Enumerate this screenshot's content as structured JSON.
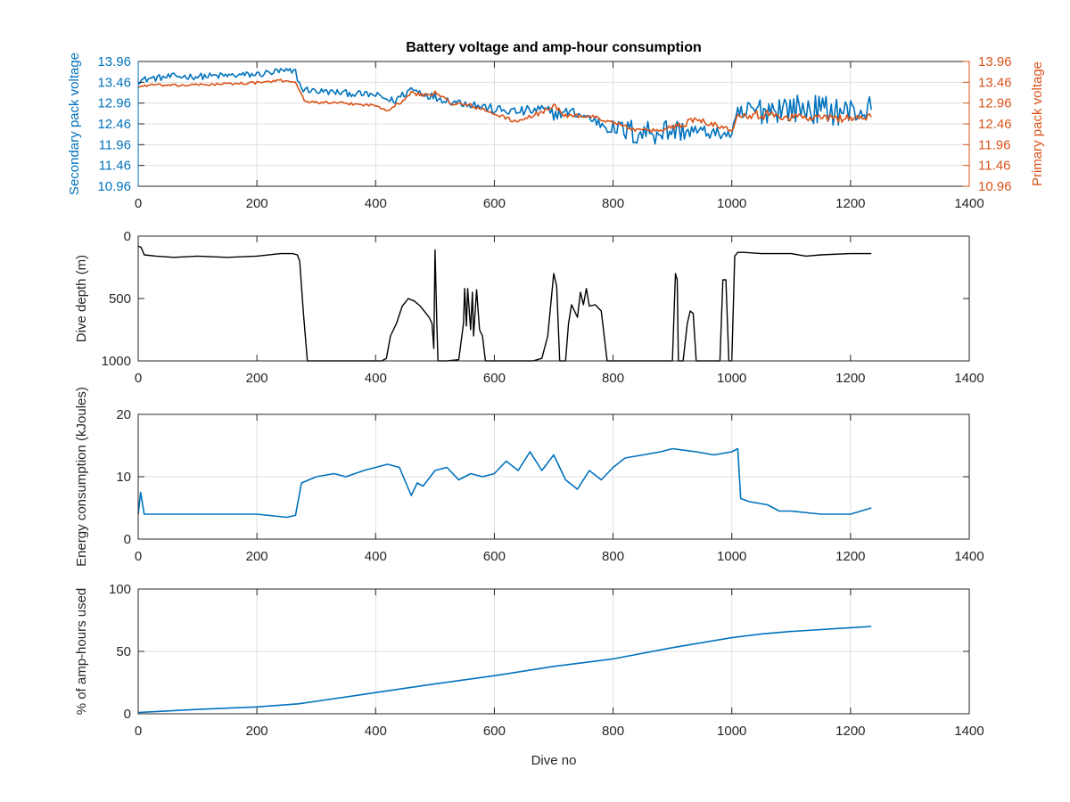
{
  "colors": {
    "secondary": "#0072BD",
    "primary": "#D95319",
    "depth": "#000000",
    "energy": "#0072BD",
    "amphours": "#0072BD",
    "axis": "#262626",
    "grid": "#dfdfdf"
  },
  "chart_data": [
    {
      "type": "line",
      "title": "Battery voltage and amp-hour consumption",
      "xlabel": "",
      "ylabel": "Secondary pack voltage",
      "ylabel_right": "Primary pack voltage",
      "xlim": [
        0,
        1400
      ],
      "ylim": [
        10.96,
        13.96
      ],
      "ylim_right": [
        10.96,
        13.96
      ],
      "xticks": [
        "0",
        "200",
        "400",
        "600",
        "800",
        "1000",
        "1200",
        "1400"
      ],
      "yticks": [
        "10.96",
        "11.46",
        "11.96",
        "12.46",
        "12.96",
        "13.46",
        "13.96"
      ],
      "yticks_right": [
        "10.96",
        "11.46",
        "11.96",
        "12.46",
        "12.96",
        "13.46",
        "13.96"
      ],
      "grid": true,
      "series": [
        {
          "axis": "left",
          "color": "#0072BD",
          "x": [
            0,
            20,
            60,
            100,
            150,
            200,
            240,
            265,
            275,
            300,
            350,
            400,
            430,
            460,
            480,
            500,
            530,
            560,
            600,
            640,
            680,
            700,
            730,
            760,
            800,
            840,
            880,
            920,
            960,
            1000,
            1010,
            1030,
            1080,
            1150,
            1200,
            1235
          ],
          "y": [
            13.5,
            13.55,
            13.6,
            13.6,
            13.62,
            13.65,
            13.72,
            13.7,
            13.3,
            13.25,
            13.2,
            13.15,
            13.0,
            13.3,
            13.2,
            13.1,
            13.0,
            12.95,
            12.8,
            12.75,
            12.8,
            12.7,
            12.75,
            12.6,
            12.35,
            12.25,
            12.3,
            12.3,
            12.25,
            12.2,
            12.6,
            12.75,
            12.85,
            12.8,
            12.75,
            12.8
          ],
          "noise": [
            0.08,
            0.08,
            0.08,
            0.08,
            0.08,
            0.08,
            0.1,
            0.1,
            0.08,
            0.08,
            0.08,
            0.08,
            0.1,
            0.1,
            0.1,
            0.1,
            0.1,
            0.12,
            0.12,
            0.12,
            0.15,
            0.15,
            0.12,
            0.12,
            0.2,
            0.35,
            0.35,
            0.25,
            0.15,
            0.12,
            0.3,
            0.35,
            0.35,
            0.35,
            0.35,
            0.35
          ]
        },
        {
          "axis": "right",
          "color": "#D95319",
          "x": [
            0,
            20,
            60,
            100,
            150,
            200,
            240,
            265,
            280,
            300,
            350,
            400,
            420,
            440,
            460,
            480,
            500,
            530,
            560,
            600,
            640,
            680,
            700,
            720,
            760,
            800,
            840,
            880,
            900,
            920,
            940,
            960,
            980,
            1000,
            1010,
            1030,
            1080,
            1150,
            1200,
            1235
          ],
          "y": [
            13.35,
            13.4,
            13.38,
            13.4,
            13.42,
            13.45,
            13.5,
            13.48,
            13.0,
            12.98,
            12.95,
            12.9,
            12.8,
            12.95,
            13.2,
            13.15,
            13.2,
            12.95,
            12.9,
            12.7,
            12.5,
            12.75,
            12.9,
            12.65,
            12.65,
            12.5,
            12.3,
            12.3,
            12.4,
            12.45,
            12.6,
            12.5,
            12.4,
            12.3,
            12.7,
            12.7,
            12.65,
            12.6,
            12.6,
            12.62
          ],
          "noise": [
            0.03,
            0.03,
            0.03,
            0.03,
            0.03,
            0.03,
            0.03,
            0.03,
            0.03,
            0.03,
            0.03,
            0.03,
            0.04,
            0.04,
            0.05,
            0.05,
            0.05,
            0.05,
            0.05,
            0.05,
            0.05,
            0.06,
            0.06,
            0.05,
            0.05,
            0.04,
            0.04,
            0.05,
            0.08,
            0.08,
            0.08,
            0.08,
            0.06,
            0.05,
            0.1,
            0.12,
            0.12,
            0.1,
            0.1,
            0.1
          ]
        }
      ]
    },
    {
      "type": "line",
      "title": "",
      "xlabel": "",
      "ylabel": "Dive depth (m)",
      "xlim": [
        0,
        1400
      ],
      "ylim": [
        0,
        1000
      ],
      "y_reversed": true,
      "xticks": [
        "0",
        "200",
        "400",
        "600",
        "800",
        "1000",
        "1200",
        "1400"
      ],
      "yticks": [
        "0",
        "500",
        "1000"
      ],
      "grid": false,
      "series": [
        {
          "color": "#000000",
          "x": [
            0,
            5,
            10,
            30,
            60,
            100,
            150,
            200,
            240,
            260,
            268,
            272,
            278,
            285,
            300,
            350,
            400,
            410,
            418,
            425,
            435,
            445,
            455,
            465,
            475,
            485,
            490,
            495,
            498,
            500,
            503,
            505,
            510,
            515,
            520,
            540,
            548,
            550,
            553,
            555,
            560,
            563,
            565,
            570,
            575,
            580,
            585,
            590,
            600,
            620,
            640,
            665,
            680,
            690,
            700,
            705,
            710,
            720,
            725,
            730,
            740,
            745,
            750,
            755,
            760,
            770,
            780,
            790,
            800,
            850,
            880,
            900,
            905,
            908,
            910,
            912,
            915,
            918,
            925,
            930,
            935,
            940,
            945,
            950,
            960,
            980,
            985,
            990,
            995,
            1000,
            1005,
            1010,
            1020,
            1050,
            1100,
            1125,
            1150,
            1200,
            1235
          ],
          "y": [
            80,
            90,
            150,
            160,
            170,
            160,
            170,
            160,
            140,
            140,
            150,
            200,
            600,
            1000,
            1000,
            1000,
            1000,
            1000,
            980,
            800,
            700,
            560,
            500,
            520,
            560,
            620,
            650,
            700,
            900,
            110,
            700,
            1000,
            1000,
            1000,
            1000,
            990,
            700,
            420,
            720,
            420,
            750,
            450,
            800,
            430,
            750,
            800,
            1000,
            1000,
            1000,
            1000,
            1000,
            1000,
            980,
            800,
            300,
            400,
            1000,
            1000,
            700,
            550,
            650,
            450,
            550,
            420,
            560,
            550,
            600,
            1000,
            1000,
            1000,
            1000,
            1000,
            300,
            350,
            1000,
            1000,
            1000,
            1000,
            700,
            600,
            620,
            1000,
            1000,
            1000,
            1000,
            1000,
            350,
            350,
            1000,
            1000,
            160,
            130,
            130,
            140,
            140,
            160,
            150,
            140,
            140
          ]
        }
      ]
    },
    {
      "type": "line",
      "title": "",
      "xlabel": "",
      "ylabel": "Energy consumption (kJoules)",
      "xlim": [
        0,
        1400
      ],
      "ylim": [
        0,
        20
      ],
      "xticks": [
        "0",
        "200",
        "400",
        "600",
        "800",
        "1000",
        "1200",
        "1400"
      ],
      "yticks": [
        "0",
        "10",
        "20"
      ],
      "grid": true,
      "series": [
        {
          "color": "#0072BD",
          "x": [
            0,
            4,
            10,
            20,
            50,
            100,
            150,
            200,
            250,
            265,
            275,
            300,
            330,
            350,
            380,
            400,
            420,
            440,
            460,
            470,
            480,
            500,
            520,
            540,
            560,
            580,
            600,
            620,
            640,
            660,
            680,
            700,
            720,
            740,
            760,
            780,
            800,
            820,
            850,
            880,
            900,
            940,
            970,
            1000,
            1010,
            1015,
            1030,
            1060,
            1080,
            1100,
            1150,
            1200,
            1235
          ],
          "y": [
            4,
            7.5,
            4,
            4,
            4,
            4,
            4,
            4,
            3.5,
            3.8,
            9,
            10,
            10.5,
            10,
            11,
            11.5,
            12,
            11.5,
            7,
            9,
            8.5,
            11,
            11.5,
            9.5,
            10.5,
            10,
            10.5,
            12.5,
            11,
            14,
            11,
            13.5,
            9.5,
            8,
            11,
            9.5,
            11.5,
            13,
            13.5,
            14,
            14.5,
            14,
            13.5,
            14,
            14.5,
            6.5,
            6,
            5.5,
            4.5,
            4.5,
            4,
            4,
            5
          ]
        }
      ]
    },
    {
      "type": "line",
      "title": "",
      "xlabel": "Dive no",
      "ylabel": "% of amp-hours used",
      "xlim": [
        0,
        1400
      ],
      "ylim": [
        0,
        100
      ],
      "xticks": [
        "0",
        "200",
        "400",
        "600",
        "800",
        "1000",
        "1200",
        "1400"
      ],
      "yticks": [
        "0",
        "50",
        "100"
      ],
      "grid": true,
      "series": [
        {
          "color": "#0072BD",
          "x": [
            0,
            100,
            200,
            270,
            300,
            400,
            500,
            600,
            700,
            800,
            900,
            1000,
            1050,
            1100,
            1200,
            1235
          ],
          "y": [
            1,
            3.5,
            5.5,
            8,
            10,
            17,
            24,
            30.5,
            38,
            44,
            53,
            61,
            64,
            66,
            69,
            70
          ]
        }
      ]
    }
  ]
}
